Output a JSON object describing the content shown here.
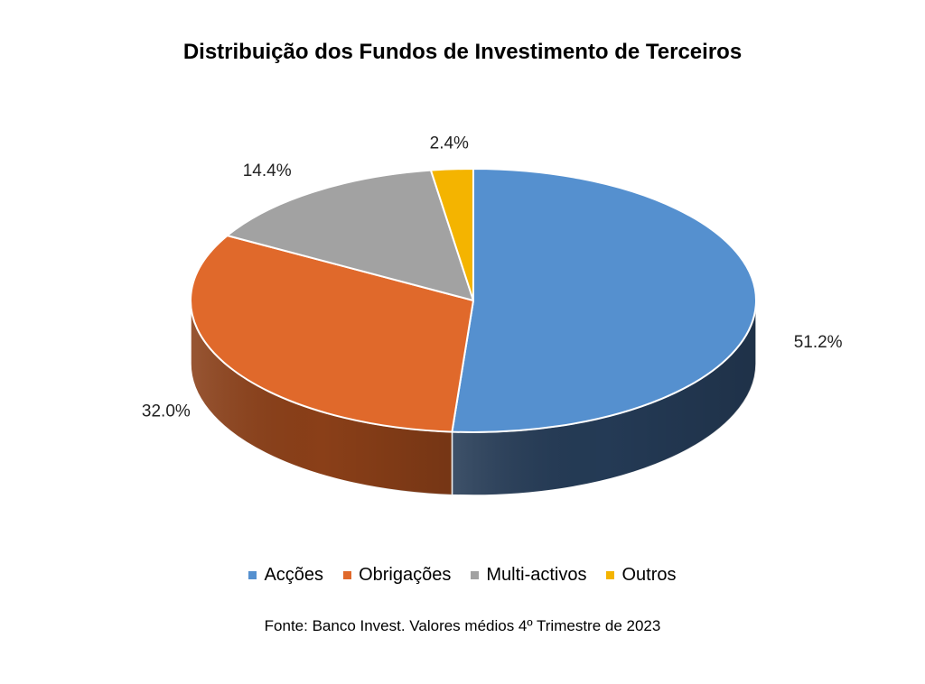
{
  "chart_data": {
    "type": "pie",
    "title": "Distribuição dos Fundos de Investimento de Terceiros",
    "categories": [
      "Acções",
      "Obrigações",
      "Multi-activos",
      "Outros"
    ],
    "values": [
      51.2,
      32.0,
      14.4,
      2.4
    ],
    "labels": [
      "51.2%",
      "32.0%",
      "14.4%",
      "2.4%"
    ],
    "colors": [
      "#5590cf",
      "#e0692b",
      "#a2a2a2",
      "#f4b400"
    ],
    "side_colors": [
      "#243a55",
      "#8a3f18",
      "#5a5a5a",
      "#8a6a00"
    ],
    "legend_position": "bottom",
    "style": "3d"
  },
  "source_note": "Fonte: Banco Invest. Valores médios 4º Trimestre de 2023"
}
